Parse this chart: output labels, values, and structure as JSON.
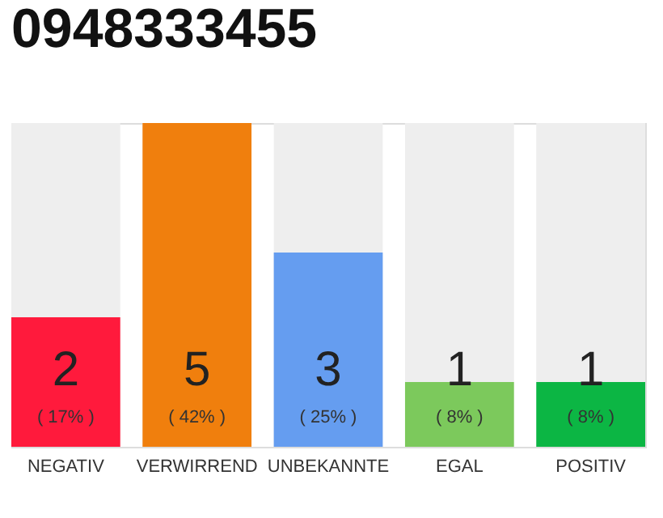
{
  "chart_data": {
    "type": "bar",
    "title": "0948333455",
    "categories": [
      "NEGATIV",
      "VERWIRREND",
      "UNBEKANNTE",
      "EGAL",
      "POSITIV"
    ],
    "values": [
      2,
      5,
      3,
      1,
      1
    ],
    "colors": [
      "#ff1a3c",
      "#f07f0d",
      "#659df0",
      "#7cc95c",
      "#0cb644"
    ],
    "data_labels": true,
    "annotations": [
      "( 17% )",
      "( 42% )",
      "( 25% )",
      "( 8% )",
      "( 8% )"
    ]
  }
}
